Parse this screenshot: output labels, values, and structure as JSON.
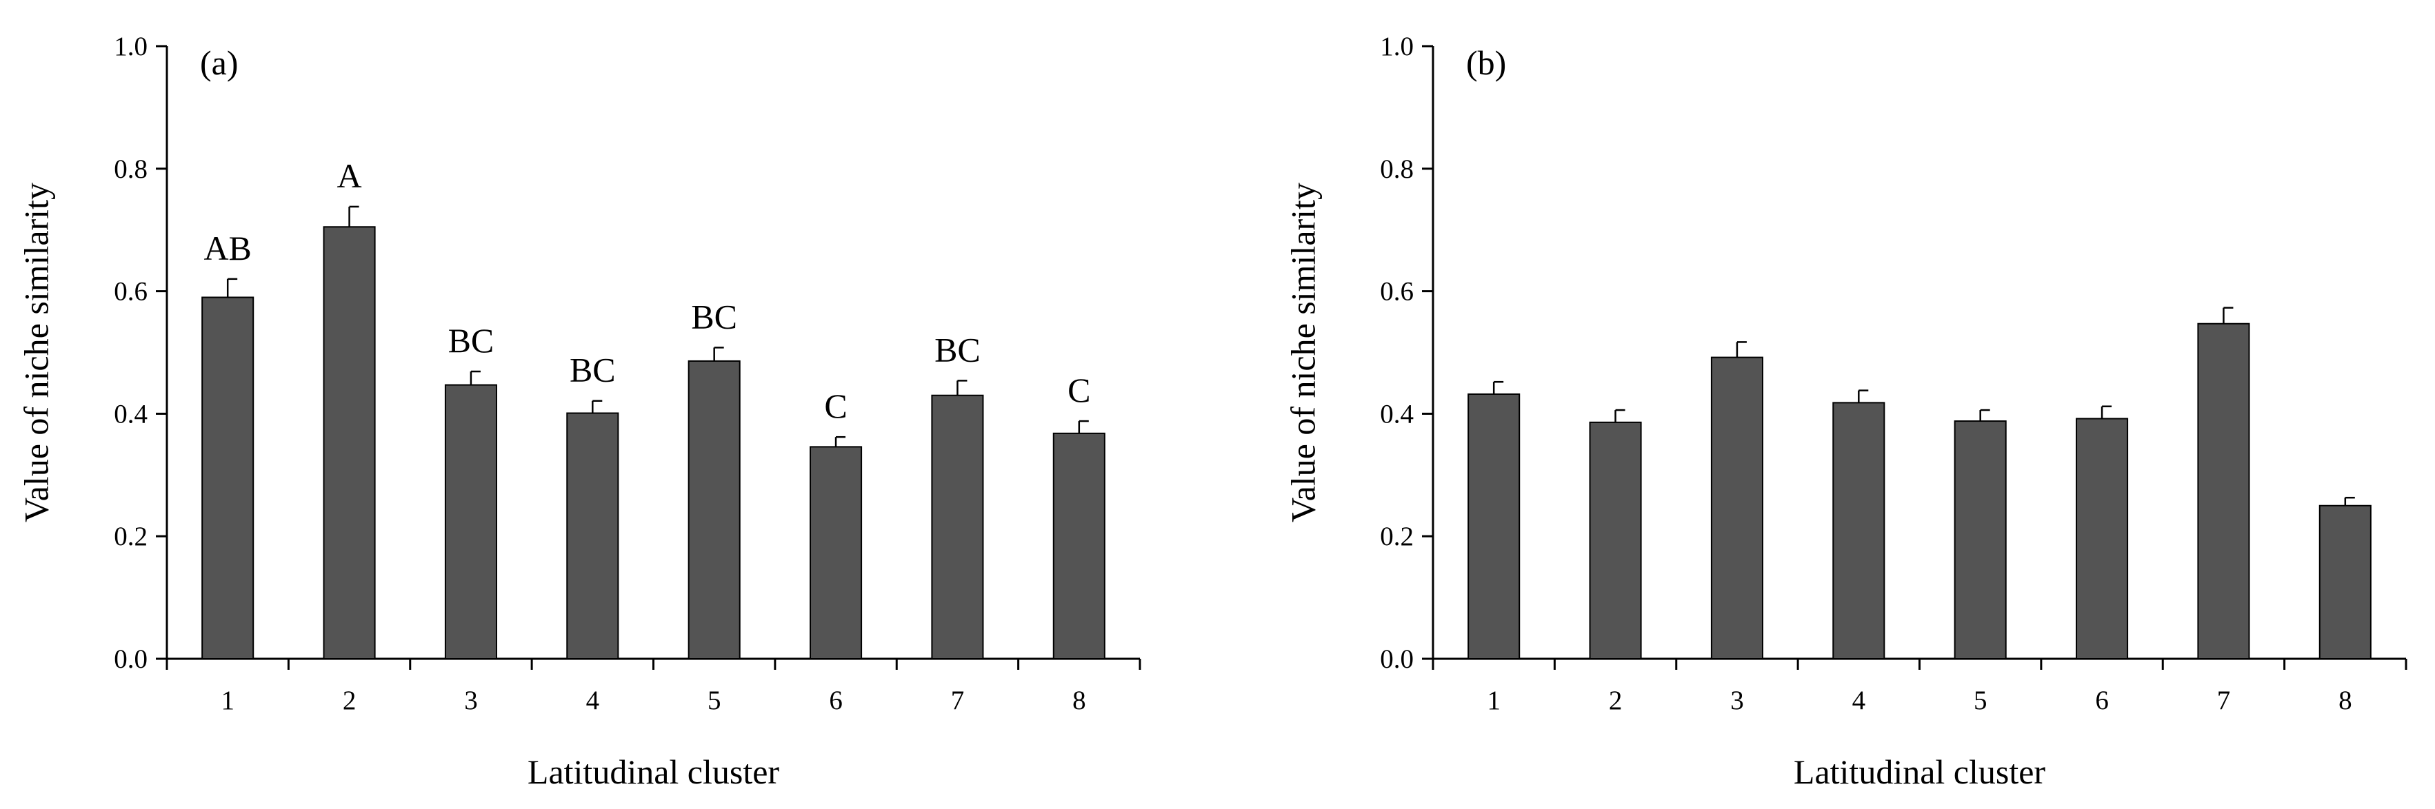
{
  "chart_data": [
    {
      "type": "bar",
      "panel_label": "(a)",
      "categories": [
        "1",
        "2",
        "3",
        "4",
        "5",
        "6",
        "7",
        "8"
      ],
      "values": [
        0.59,
        0.705,
        0.447,
        0.401,
        0.486,
        0.346,
        0.43,
        0.368
      ],
      "errors": [
        0.03,
        0.033,
        0.022,
        0.02,
        0.022,
        0.016,
        0.024,
        0.02
      ],
      "annotations": [
        "AB",
        "A",
        "BC",
        "BC",
        "BC",
        "C",
        "BC",
        "C"
      ],
      "xlabel": "Latitudinal cluster",
      "ylabel": "Value of niche similarity",
      "ylim": [
        0,
        1.0
      ],
      "yticks": [
        "0.0",
        "0.2",
        "0.4",
        "0.6",
        "0.8",
        "1.0"
      ],
      "bar_color": "#545454",
      "grid": false
    },
    {
      "type": "bar",
      "panel_label": "(b)",
      "categories": [
        "1",
        "2",
        "3",
        "4",
        "5",
        "6",
        "7",
        "8"
      ],
      "values": [
        0.432,
        0.386,
        0.492,
        0.418,
        0.388,
        0.392,
        0.547,
        0.25
      ],
      "errors": [
        0.02,
        0.02,
        0.025,
        0.02,
        0.018,
        0.02,
        0.026,
        0.013
      ],
      "annotations": [],
      "xlabel": "Latitudinal cluster",
      "ylabel": "Value of niche similarity",
      "ylim": [
        0,
        1.0
      ],
      "yticks": [
        "0.0",
        "0.2",
        "0.4",
        "0.6",
        "0.8",
        "1.0"
      ],
      "bar_color": "#545454",
      "grid": false
    }
  ]
}
